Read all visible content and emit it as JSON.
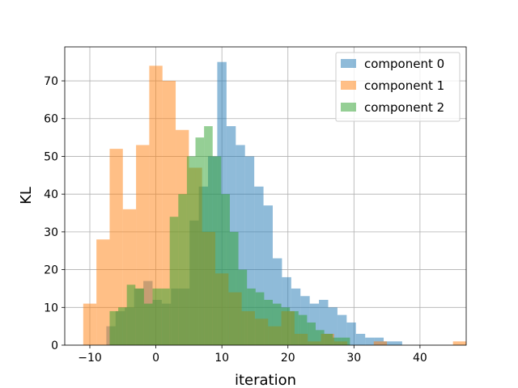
{
  "chart_data": {
    "type": "histogram",
    "title": "",
    "xlabel": "iteration",
    "ylabel": "KL",
    "xlim": [
      -13.8,
      47
    ],
    "ylim": [
      0,
      79
    ],
    "xticks": [
      -10,
      0,
      10,
      20,
      30,
      40
    ],
    "yticks": [
      0,
      10,
      20,
      30,
      40,
      50,
      60,
      70
    ],
    "grid": true,
    "legend_position": "top-right",
    "series": [
      {
        "name": "component 0",
        "color": "#1f77b4",
        "alpha": 0.5,
        "bin_start": -7.5,
        "bin_width": 1.4,
        "counts": [
          5,
          9,
          10,
          15,
          17,
          12,
          11,
          15,
          15,
          33,
          42,
          50,
          75,
          58,
          53,
          50,
          42,
          37,
          23,
          18,
          15,
          13,
          11,
          12,
          10,
          8,
          6,
          3,
          2,
          2,
          1,
          1
        ]
      },
      {
        "name": "component 1",
        "color": "#ff7f0e",
        "alpha": 0.5,
        "bin_start": -11.0,
        "bin_width": 2.0,
        "counts": [
          11,
          28,
          52,
          36,
          53,
          74,
          70,
          57,
          47,
          30,
          19,
          14,
          9,
          7,
          5,
          9,
          3,
          1,
          3,
          1,
          0,
          0,
          1,
          0,
          0,
          0,
          0,
          0,
          1,
          0,
          0,
          0,
          0,
          0,
          1
        ]
      },
      {
        "name": "component 2",
        "color": "#2ca02c",
        "alpha": 0.5,
        "bin_start": -7.0,
        "bin_width": 1.3,
        "counts": [
          9,
          10,
          16,
          15,
          11,
          15,
          15,
          34,
          40,
          50,
          55,
          58,
          50,
          40,
          30,
          20,
          15,
          14,
          12,
          11,
          10,
          9,
          8,
          6,
          4,
          3,
          2,
          2
        ]
      }
    ]
  }
}
